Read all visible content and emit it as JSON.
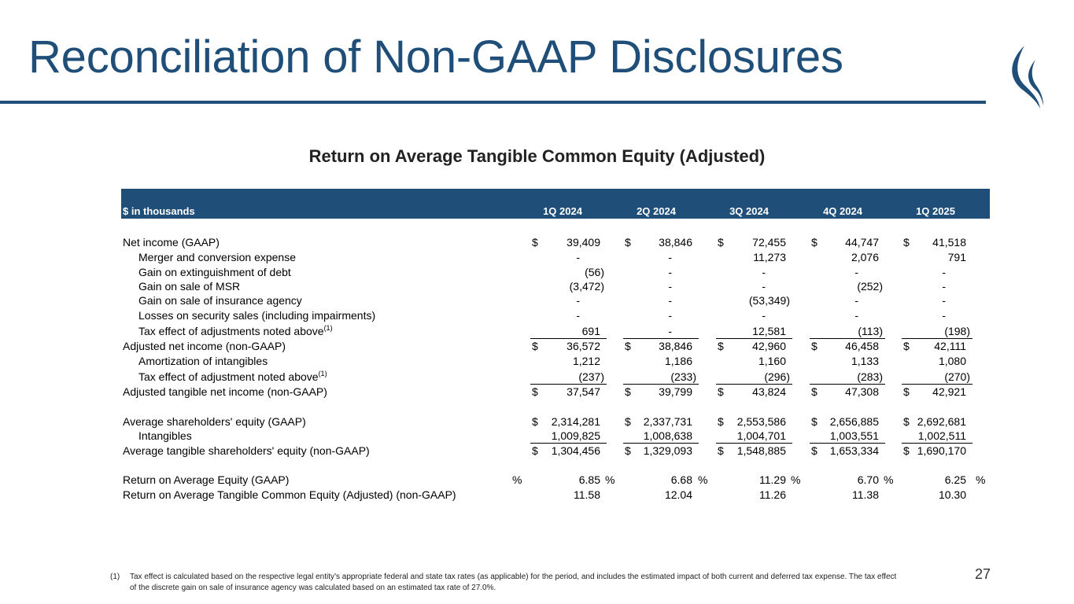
{
  "page": {
    "title": "Reconciliation of Non-GAAP Disclosures",
    "subtitle": "Return on Average Tangible Common Equity (Adjusted)",
    "page_number": "27"
  },
  "table": {
    "unit_label": "$ in thousands",
    "columns": [
      "1Q 2024",
      "2Q 2024",
      "3Q 2024",
      "4Q 2024",
      "1Q 2025"
    ],
    "rows": [
      {
        "label": "Net income (GAAP)",
        "sup": "",
        "dollar": "$",
        "values": [
          "39,409",
          "38,846",
          "72,455",
          "44,747",
          "41,518"
        ]
      },
      {
        "label": "Merger and conversion expense",
        "sup": "",
        "dollar": "",
        "values": [
          "-",
          "-",
          "11,273",
          "2,076",
          "791"
        ]
      },
      {
        "label": "Gain on extinguishment of debt",
        "sup": "",
        "dollar": "",
        "values": [
          "(56)",
          "-",
          "-",
          "-",
          "-"
        ]
      },
      {
        "label": "Gain on sale of MSR",
        "sup": "",
        "dollar": "",
        "values": [
          "(3,472)",
          "-",
          "-",
          "(252)",
          "-"
        ]
      },
      {
        "label": "Gain on sale of insurance agency",
        "sup": "",
        "dollar": "",
        "values": [
          "-",
          "-",
          "(53,349)",
          "-",
          "-"
        ]
      },
      {
        "label": "Losses on security sales (including impairments)",
        "sup": "",
        "dollar": "",
        "values": [
          "-",
          "-",
          "-",
          "-",
          "-"
        ]
      },
      {
        "label": "Tax effect of adjustments noted above",
        "sup": "(1)",
        "dollar": "",
        "values": [
          "691",
          "-",
          "12,581",
          "(113)",
          "(198)"
        ]
      },
      {
        "label": "Adjusted net income (non-GAAP)",
        "sup": "",
        "dollar": "$",
        "values": [
          "36,572",
          "38,846",
          "42,960",
          "46,458",
          "42,111"
        ]
      },
      {
        "label": "Amortization of intangibles",
        "sup": "",
        "dollar": "",
        "values": [
          "1,212",
          "1,186",
          "1,160",
          "1,133",
          "1,080"
        ]
      },
      {
        "label": "Tax effect of adjustment noted above",
        "sup": "(1)",
        "dollar": "",
        "values": [
          "(237)",
          "(233)",
          "(296)",
          "(283)",
          "(270)"
        ]
      },
      {
        "label": "Adjusted tangible net income (non-GAAP)",
        "sup": "",
        "dollar": "$",
        "values": [
          "37,547",
          "39,799",
          "43,824",
          "47,308",
          "42,921"
        ]
      },
      {
        "label": "Average shareholders' equity (GAAP)",
        "sup": "",
        "dollar": "$",
        "values": [
          "2,314,281",
          "2,337,731",
          "2,553,586",
          "2,656,885",
          "2,692,681"
        ]
      },
      {
        "label": "Intangibles",
        "sup": "",
        "dollar": "",
        "values": [
          "1,009,825",
          "1,008,638",
          "1,004,701",
          "1,003,551",
          "1,002,511"
        ]
      },
      {
        "label": "Average tangible shareholders' equity (non-GAAP)",
        "sup": "",
        "dollar": "$",
        "values": [
          "1,304,456",
          "1,329,093",
          "1,548,885",
          "1,653,334",
          "1,690,170"
        ]
      },
      {
        "label": "Return on Average Equity (GAAP)",
        "sup": "",
        "dollar": "",
        "values": [
          "6.85",
          "6.68",
          "11.29",
          "6.70",
          "6.25"
        ]
      },
      {
        "label": "Return on Average Tangible Common Equity (Adjusted) (non-GAAP)",
        "sup": "",
        "dollar": "",
        "values": [
          "11.58",
          "12.04",
          "11.26",
          "11.38",
          "10.30"
        ]
      }
    ],
    "percent_sign": "%"
  },
  "footnote": {
    "marker": "(1)",
    "text": "Tax effect is calculated based on the respective legal entity’s appropriate federal and state tax rates (as applicable) for the period, and includes the estimated impact of both current and deferred tax expense. The tax effect of the discrete gain on sale of insurance agency was calculated based on an estimated tax rate of 27.0%."
  },
  "colors": {
    "brand": "#1f4e79"
  }
}
